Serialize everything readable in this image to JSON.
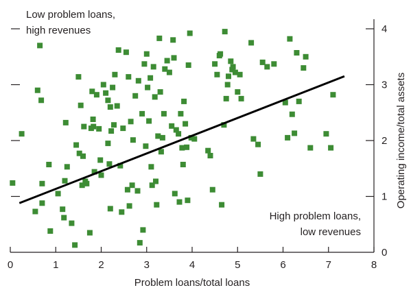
{
  "chart_data": {
    "type": "scatter",
    "xlabel": "Problem loans/total loans",
    "ylabel": "Operating income/total assets",
    "xlim": [
      0,
      8
    ],
    "ylim": [
      0,
      4
    ],
    "x_ticks": [
      "0",
      "1",
      "2",
      "3",
      "4",
      "5",
      "6",
      "7",
      "8"
    ],
    "y_ticks": [
      "0",
      "1",
      "2",
      "3",
      "4"
    ],
    "left_axis": "unlabeled tick marks only",
    "grid": false,
    "colors": {
      "points": "#3d8c34",
      "trendline": "#000000",
      "text": "#231f20"
    },
    "annotations": {
      "top_left": [
        "Low problem loans,",
        "high revenues"
      ],
      "bottom_right": [
        "High problem loans,",
        "low revenues"
      ]
    },
    "trendline": {
      "x": [
        0.2,
        7.35
      ],
      "y": [
        0.88,
        3.15
      ]
    },
    "points": [
      [
        0.05,
        1.24
      ],
      [
        0.25,
        2.12
      ],
      [
        0.55,
        0.73
      ],
      [
        0.6,
        2.9
      ],
      [
        0.65,
        3.7
      ],
      [
        0.68,
        2.72
      ],
      [
        0.7,
        1.23
      ],
      [
        0.7,
        0.88
      ],
      [
        0.85,
        1.57
      ],
      [
        0.88,
        0.38
      ],
      [
        1.05,
        1.05
      ],
      [
        1.15,
        0.77
      ],
      [
        1.18,
        0.62
      ],
      [
        1.2,
        1.28
      ],
      [
        1.22,
        2.32
      ],
      [
        1.25,
        1.53
      ],
      [
        1.35,
        0.52
      ],
      [
        1.42,
        0.13
      ],
      [
        1.45,
        1.92
      ],
      [
        1.5,
        3.14
      ],
      [
        1.52,
        1.77
      ],
      [
        1.55,
        2.63
      ],
      [
        1.58,
        1.2
      ],
      [
        1.6,
        1.72
      ],
      [
        1.62,
        2.25
      ],
      [
        1.65,
        1.27
      ],
      [
        1.68,
        1.23
      ],
      [
        1.75,
        0.35
      ],
      [
        1.78,
        2.22
      ],
      [
        1.8,
        2.88
      ],
      [
        1.82,
        2.38
      ],
      [
        1.83,
        2.25
      ],
      [
        1.85,
        1.44
      ],
      [
        1.9,
        2.82
      ],
      [
        1.95,
        2.21
      ],
      [
        1.98,
        1.65
      ],
      [
        2.0,
        1.38
      ],
      [
        2.05,
        3.0
      ],
      [
        2.1,
        2.85
      ],
      [
        2.15,
        2.72
      ],
      [
        2.15,
        1.95
      ],
      [
        2.18,
        1.58
      ],
      [
        2.2,
        0.78
      ],
      [
        2.2,
        2.6
      ],
      [
        2.22,
        2.17
      ],
      [
        2.25,
        2.95
      ],
      [
        2.28,
        2.28
      ],
      [
        2.3,
        3.18
      ],
      [
        2.35,
        2.62
      ],
      [
        2.38,
        3.62
      ],
      [
        2.42,
        1.55
      ],
      [
        2.45,
        0.72
      ],
      [
        2.48,
        2.22
      ],
      [
        2.55,
        3.58
      ],
      [
        2.58,
        1.12
      ],
      [
        2.6,
        3.14
      ],
      [
        2.62,
        0.83
      ],
      [
        2.65,
        2.34
      ],
      [
        2.68,
        1.2
      ],
      [
        2.7,
        2.01
      ],
      [
        2.75,
        2.8
      ],
      [
        2.8,
        1.1
      ],
      [
        2.82,
        3.07
      ],
      [
        2.85,
        0.17
      ],
      [
        2.9,
        2.48
      ],
      [
        2.92,
        0.4
      ],
      [
        2.95,
        3.37
      ],
      [
        2.98,
        1.9
      ],
      [
        3.0,
        3.55
      ],
      [
        3.02,
        2.95
      ],
      [
        3.05,
        2.35
      ],
      [
        3.08,
        3.12
      ],
      [
        3.1,
        1.53
      ],
      [
        3.12,
        1.2
      ],
      [
        3.15,
        3.32
      ],
      [
        3.18,
        2.78
      ],
      [
        3.2,
        1.27
      ],
      [
        3.22,
        0.85
      ],
      [
        3.25,
        2.08
      ],
      [
        3.28,
        3.83
      ],
      [
        3.3,
        2.87
      ],
      [
        3.32,
        1.8
      ],
      [
        3.35,
        2.05
      ],
      [
        3.38,
        2.48
      ],
      [
        3.4,
        3.28
      ],
      [
        3.45,
        3.43
      ],
      [
        3.5,
        3.22
      ],
      [
        3.55,
        2.26
      ],
      [
        3.58,
        3.8
      ],
      [
        3.6,
        3.48
      ],
      [
        3.62,
        1.05
      ],
      [
        3.65,
        2.19
      ],
      [
        3.7,
        2.12
      ],
      [
        3.72,
        0.9
      ],
      [
        3.75,
        2.48
      ],
      [
        3.78,
        1.87
      ],
      [
        3.8,
        1.57
      ],
      [
        3.82,
        2.7
      ],
      [
        3.85,
        2.3
      ],
      [
        3.88,
        1.88
      ],
      [
        3.9,
        0.93
      ],
      [
        3.92,
        3.35
      ],
      [
        3.95,
        3.92
      ],
      [
        3.98,
        2.05
      ],
      [
        4.05,
        2.03
      ],
      [
        4.35,
        1.82
      ],
      [
        4.4,
        1.73
      ],
      [
        4.45,
        1.12
      ],
      [
        4.5,
        3.37
      ],
      [
        4.55,
        3.18
      ],
      [
        4.6,
        3.52
      ],
      [
        4.62,
        3.55
      ],
      [
        4.65,
        0.85
      ],
      [
        4.7,
        2.28
      ],
      [
        4.72,
        3.95
      ],
      [
        4.75,
        2.75
      ],
      [
        4.78,
        3.0
      ],
      [
        4.8,
        3.15
      ],
      [
        4.85,
        3.42
      ],
      [
        4.88,
        3.27
      ],
      [
        4.9,
        3.32
      ],
      [
        4.95,
        3.22
      ],
      [
        5.0,
        2.87
      ],
      [
        5.05,
        3.18
      ],
      [
        5.08,
        2.75
      ],
      [
        5.3,
        3.75
      ],
      [
        5.35,
        2.03
      ],
      [
        5.45,
        1.93
      ],
      [
        5.5,
        1.4
      ],
      [
        5.55,
        3.4
      ],
      [
        5.65,
        3.32
      ],
      [
        5.8,
        3.37
      ],
      [
        6.05,
        2.68
      ],
      [
        6.1,
        2.05
      ],
      [
        6.15,
        3.82
      ],
      [
        6.2,
        2.47
      ],
      [
        6.25,
        2.13
      ],
      [
        6.3,
        3.57
      ],
      [
        6.35,
        2.7
      ],
      [
        6.45,
        3.3
      ],
      [
        6.5,
        3.5
      ],
      [
        6.6,
        1.87
      ],
      [
        6.95,
        2.12
      ],
      [
        7.05,
        1.87
      ],
      [
        7.1,
        2.82
      ]
    ]
  }
}
